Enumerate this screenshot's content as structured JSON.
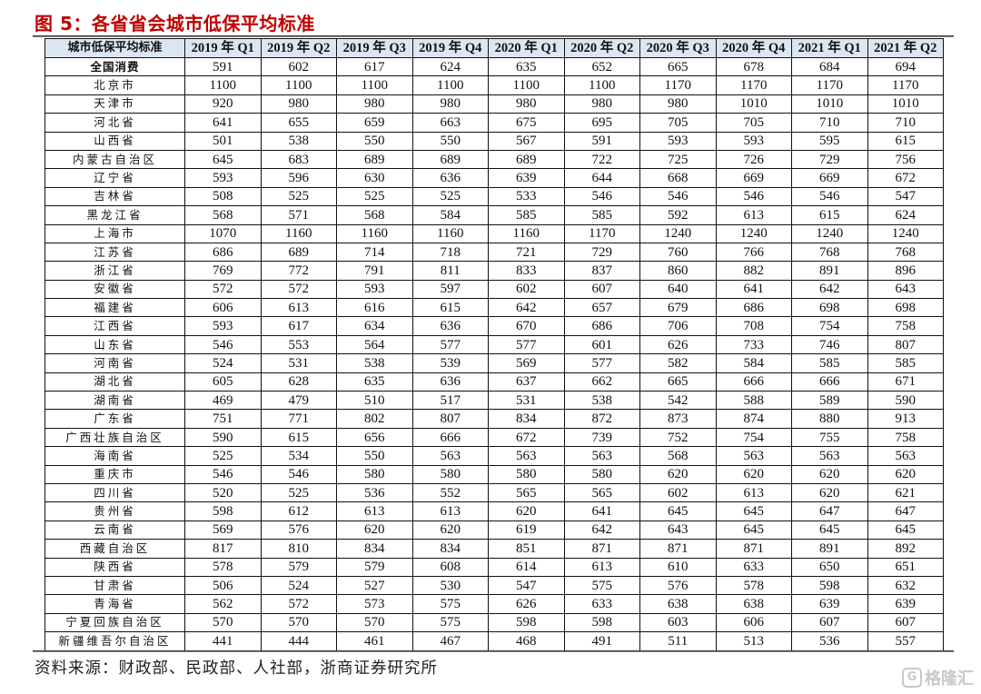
{
  "title": "图 5：各省省会城市低保平均标准",
  "table": {
    "headers": [
      "城市低保平均标准",
      "2019 年 Q1",
      "2019 年 Q2",
      "2019 年 Q3",
      "2019 年 Q4",
      "2020 年 Q1",
      "2020 年 Q2",
      "2020 年 Q3",
      "2020 年 Q4",
      "2021 年 Q1",
      "2021 年 Q2"
    ],
    "header_bg": "#dce6f2",
    "rows": [
      {
        "name": "全国消费",
        "bold": true,
        "values": [
          591,
          602,
          617,
          624,
          635,
          652,
          665,
          678,
          684,
          694
        ]
      },
      {
        "name": "北京市",
        "values": [
          1100,
          1100,
          1100,
          1100,
          1100,
          1100,
          1170,
          1170,
          1170,
          1170
        ]
      },
      {
        "name": "天津市",
        "values": [
          920,
          980,
          980,
          980,
          980,
          980,
          980,
          1010,
          1010,
          1010
        ]
      },
      {
        "name": "河北省",
        "values": [
          641,
          655,
          659,
          663,
          675,
          695,
          705,
          705,
          710,
          710
        ]
      },
      {
        "name": "山西省",
        "values": [
          501,
          538,
          550,
          550,
          567,
          591,
          593,
          593,
          595,
          615
        ]
      },
      {
        "name": "内蒙古自治区",
        "values": [
          645,
          683,
          689,
          689,
          689,
          722,
          725,
          726,
          729,
          756
        ]
      },
      {
        "name": "辽宁省",
        "values": [
          593,
          596,
          630,
          636,
          639,
          644,
          668,
          669,
          669,
          672
        ]
      },
      {
        "name": "吉林省",
        "values": [
          508,
          525,
          525,
          525,
          533,
          546,
          546,
          546,
          546,
          547
        ]
      },
      {
        "name": "黑龙江省",
        "values": [
          568,
          571,
          568,
          584,
          585,
          585,
          592,
          613,
          615,
          624
        ]
      },
      {
        "name": "上海市",
        "values": [
          1070,
          1160,
          1160,
          1160,
          1160,
          1170,
          1240,
          1240,
          1240,
          1240
        ]
      },
      {
        "name": "江苏省",
        "values": [
          686,
          689,
          714,
          718,
          721,
          729,
          760,
          766,
          768,
          768
        ]
      },
      {
        "name": "浙江省",
        "values": [
          769,
          772,
          791,
          811,
          833,
          837,
          860,
          882,
          891,
          896
        ]
      },
      {
        "name": "安徽省",
        "values": [
          572,
          572,
          593,
          597,
          602,
          607,
          640,
          641,
          642,
          643
        ]
      },
      {
        "name": "福建省",
        "values": [
          606,
          613,
          616,
          615,
          642,
          657,
          679,
          686,
          698,
          698
        ]
      },
      {
        "name": "江西省",
        "values": [
          593,
          617,
          634,
          636,
          670,
          686,
          706,
          708,
          754,
          758
        ]
      },
      {
        "name": "山东省",
        "values": [
          546,
          553,
          564,
          577,
          577,
          601,
          626,
          733,
          746,
          807
        ]
      },
      {
        "name": "河南省",
        "values": [
          524,
          531,
          538,
          539,
          569,
          577,
          582,
          584,
          585,
          585
        ]
      },
      {
        "name": "湖北省",
        "values": [
          605,
          628,
          635,
          636,
          637,
          662,
          665,
          666,
          666,
          671
        ]
      },
      {
        "name": "湖南省",
        "values": [
          469,
          479,
          510,
          517,
          531,
          538,
          542,
          588,
          589,
          590
        ]
      },
      {
        "name": "广东省",
        "values": [
          751,
          771,
          802,
          807,
          834,
          872,
          873,
          874,
          880,
          913
        ]
      },
      {
        "name": "广西壮族自治区",
        "values": [
          590,
          615,
          656,
          666,
          672,
          739,
          752,
          754,
          755,
          758
        ]
      },
      {
        "name": "海南省",
        "values": [
          525,
          534,
          550,
          563,
          563,
          563,
          568,
          563,
          563,
          563
        ]
      },
      {
        "name": "重庆市",
        "values": [
          546,
          546,
          580,
          580,
          580,
          580,
          620,
          620,
          620,
          620
        ]
      },
      {
        "name": "四川省",
        "values": [
          520,
          525,
          536,
          552,
          565,
          565,
          602,
          613,
          620,
          621
        ]
      },
      {
        "name": "贵州省",
        "values": [
          598,
          612,
          613,
          613,
          620,
          641,
          645,
          645,
          647,
          647
        ]
      },
      {
        "name": "云南省",
        "values": [
          569,
          576,
          620,
          620,
          619,
          642,
          643,
          645,
          645,
          645
        ]
      },
      {
        "name": "西藏自治区",
        "values": [
          817,
          810,
          834,
          834,
          851,
          871,
          871,
          871,
          891,
          892
        ]
      },
      {
        "name": "陕西省",
        "values": [
          578,
          579,
          579,
          608,
          614,
          613,
          610,
          633,
          650,
          651
        ]
      },
      {
        "name": "甘肃省",
        "values": [
          506,
          524,
          527,
          530,
          547,
          575,
          576,
          578,
          598,
          632
        ]
      },
      {
        "name": "青海省",
        "values": [
          562,
          572,
          573,
          575,
          626,
          633,
          638,
          638,
          639,
          639
        ]
      },
      {
        "name": "宁夏回族自治区",
        "values": [
          570,
          570,
          570,
          575,
          598,
          598,
          603,
          606,
          607,
          607
        ]
      },
      {
        "name": "新疆维吾尔自治区",
        "values": [
          441,
          444,
          461,
          467,
          468,
          491,
          511,
          513,
          536,
          557
        ]
      }
    ]
  },
  "source": "资料来源：财政部、民政部、人社部，浙商证券研究所",
  "watermark": {
    "text": "格隆汇",
    "icon": "g-logo-icon"
  },
  "colors": {
    "title": "#c00000",
    "header_bg": "#dce6f2"
  }
}
